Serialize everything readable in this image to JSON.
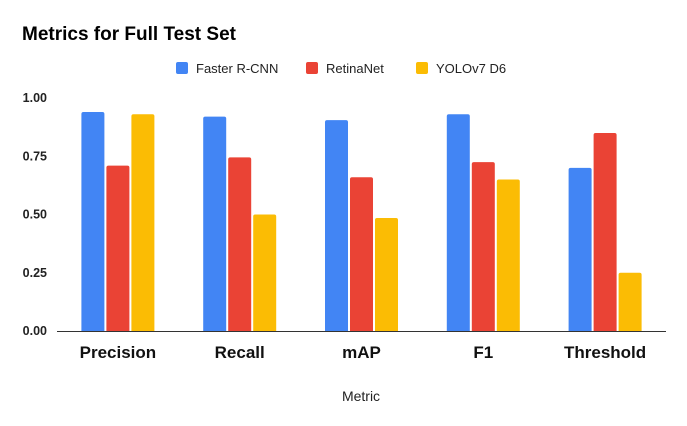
{
  "chart_data": {
    "type": "bar",
    "title": "Metrics for Full Test Set",
    "xlabel": "Metric",
    "ylabel": "",
    "categories": [
      "Precision",
      "Recall",
      "mAP",
      "F1",
      "Threshold"
    ],
    "series": [
      {
        "name": "Faster R-CNN",
        "color": "#4285F4",
        "values": [
          0.94,
          0.92,
          0.905,
          0.93,
          0.7
        ]
      },
      {
        "name": "RetinaNet",
        "color": "#EA4335",
        "values": [
          0.71,
          0.745,
          0.66,
          0.725,
          0.85
        ]
      },
      {
        "name": "YOLOv7 D6",
        "color": "#FBBC04",
        "values": [
          0.93,
          0.5,
          0.485,
          0.65,
          0.25
        ]
      }
    ],
    "ylim": [
      0,
      1
    ],
    "yticks": [
      "0.00",
      "0.25",
      "0.50",
      "0.75",
      "1.00"
    ],
    "ytick_values": [
      0,
      0.25,
      0.5,
      0.75,
      1.0
    ],
    "grid": false,
    "legend_position": "top-center",
    "colors": {
      "axis": "#333333"
    }
  }
}
